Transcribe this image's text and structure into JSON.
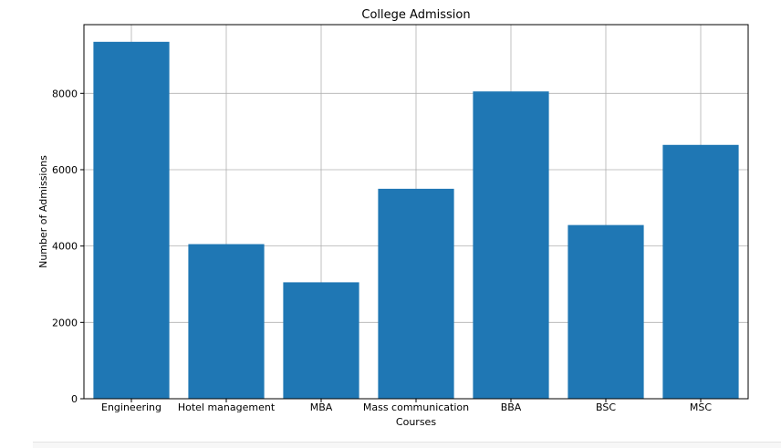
{
  "chart_data": {
    "type": "bar",
    "title": "College Admission",
    "xlabel": "Courses",
    "ylabel": "Number of Admissions",
    "categories": [
      "Engineering",
      "Hotel management",
      "MBA",
      "Mass communication",
      "BBA",
      "BSC",
      "MSC"
    ],
    "values": [
      9350,
      4050,
      3050,
      5500,
      8050,
      4550,
      6650
    ],
    "ylim": [
      0,
      9800
    ],
    "yticks": [
      0,
      2000,
      4000,
      6000,
      8000
    ],
    "grid": true,
    "bar_color": "#1f77b4"
  }
}
